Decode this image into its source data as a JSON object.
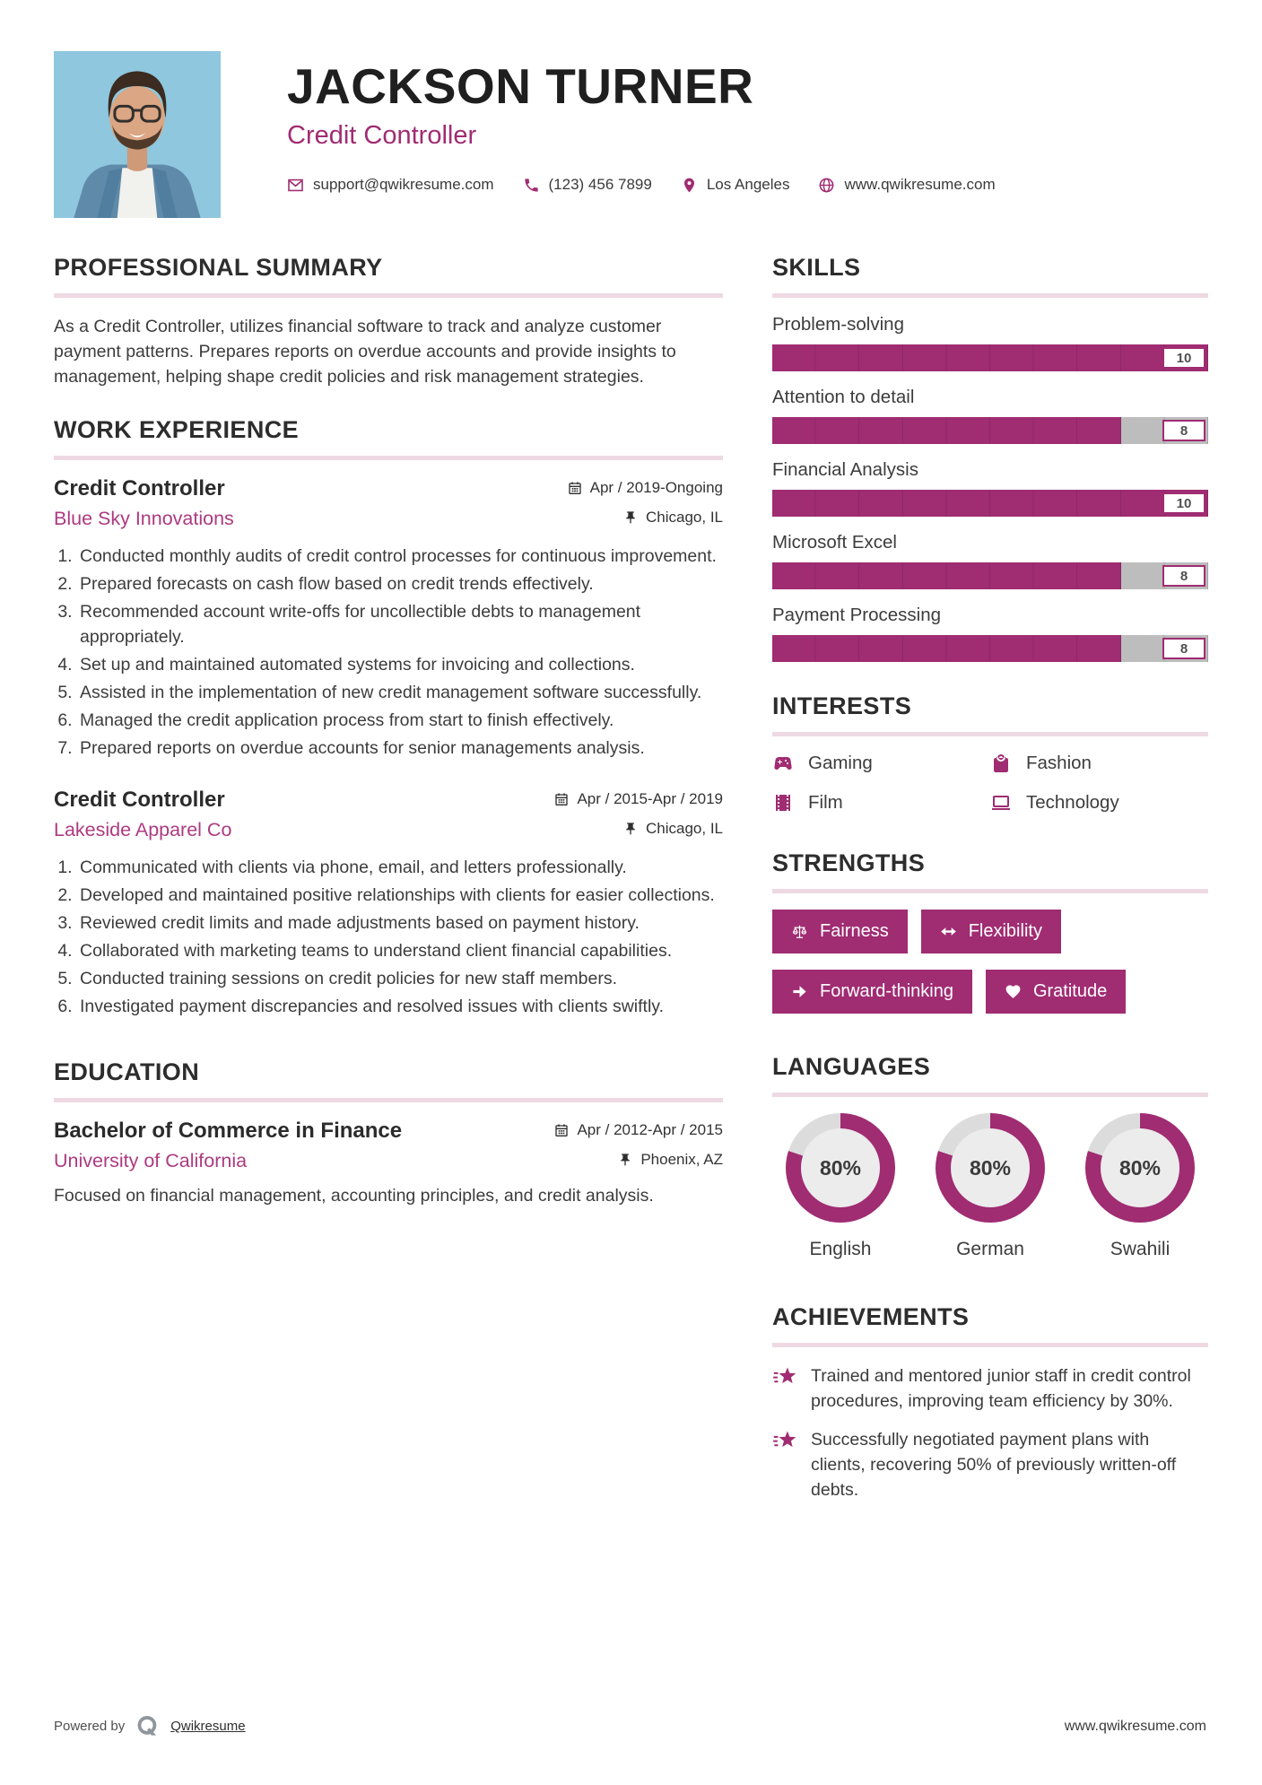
{
  "colors": {
    "accent": "#a02c72",
    "accent_light": "#ad3a80",
    "underline_pink": "#eed9e3",
    "bar_gray": "#bdbdbd",
    "donut_rest": "#dcdcdc",
    "donut_hole": "#ececec",
    "photo_background": "#8ec7de"
  },
  "header": {
    "name": "JACKSON TURNER",
    "title": "Credit Controller",
    "contact": [
      {
        "icon": "envelope-icon",
        "text": "support@qwikresume.com"
      },
      {
        "icon": "phone-icon",
        "text": "(123) 456 7899"
      },
      {
        "icon": "map-pin-icon",
        "text": "Los Angeles"
      },
      {
        "icon": "globe-icon",
        "text": "www.qwikresume.com"
      }
    ]
  },
  "meta_icons": {
    "date": "calendar-icon",
    "location": "pushpin-icon"
  },
  "professional_summary": {
    "heading": "PROFESSIONAL SUMMARY",
    "text": "As a Credit Controller, utilizes financial software to track and analyze customer payment patterns. Prepares reports on overdue accounts and provide insights to management, helping shape credit policies and risk management strategies."
  },
  "work_experience": {
    "heading": "WORK EXPERIENCE",
    "jobs": [
      {
        "title": "Credit Controller",
        "company": "Blue Sky Innovations",
        "dates": "Apr / 2019-Ongoing",
        "location": "Chicago, IL",
        "bullets": [
          "Conducted monthly audits of credit control processes for continuous improvement.",
          "Prepared forecasts on cash flow based on credit trends effectively.",
          "Recommended account write-offs for uncollectible debts to management appropriately.",
          "Set up and maintained automated systems for invoicing and collections.",
          "Assisted in the implementation of new credit management software successfully.",
          "Managed the credit application process from start to finish effectively.",
          "Prepared reports on overdue accounts for senior managements analysis."
        ]
      },
      {
        "title": "Credit Controller",
        "company": "Lakeside Apparel Co",
        "dates": "Apr / 2015-Apr / 2019",
        "location": "Chicago, IL",
        "bullets": [
          "Communicated with clients via phone, email, and letters professionally.",
          "Developed and maintained positive relationships with clients for easier collections.",
          "Reviewed credit limits and made adjustments based on payment history.",
          "Collaborated with marketing teams to understand client financial capabilities.",
          "Conducted training sessions on credit policies for new staff members.",
          "Investigated payment discrepancies and resolved issues with clients swiftly."
        ]
      }
    ]
  },
  "education": {
    "heading": "EDUCATION",
    "degree": "Bachelor of Commerce in Finance",
    "school": "University of California",
    "dates": "Apr / 2012-Apr / 2015",
    "location": "Phoenix, AZ",
    "description": "Focused on financial management, accounting principles, and credit analysis."
  },
  "skills": {
    "heading": "SKILLS",
    "max_score": 10,
    "items": [
      {
        "name": "Problem-solving",
        "score": 10,
        "pct": 100
      },
      {
        "name": "Attention to detail",
        "score": 8,
        "pct": 80
      },
      {
        "name": "Financial Analysis",
        "score": 10,
        "pct": 100
      },
      {
        "name": "Microsoft Excel",
        "score": 8,
        "pct": 80
      },
      {
        "name": "Payment Processing",
        "score": 8,
        "pct": 80
      }
    ]
  },
  "interests": {
    "heading": "INTERESTS",
    "items": [
      {
        "icon": "gamepad-icon",
        "label": "Gaming"
      },
      {
        "icon": "shopping-bag-icon",
        "label": "Fashion"
      },
      {
        "icon": "film-icon",
        "label": "Film"
      },
      {
        "icon": "laptop-icon",
        "label": "Technology"
      }
    ]
  },
  "strengths": {
    "heading": "STRENGTHS",
    "items": [
      {
        "icon": "scales-icon",
        "label": "Fairness"
      },
      {
        "icon": "left-right-arrow-icon",
        "label": "Flexibility"
      },
      {
        "icon": "right-arrow-icon",
        "label": "Forward-thinking"
      },
      {
        "icon": "heart-icon",
        "label": "Gratitude"
      }
    ]
  },
  "languages": {
    "heading": "LANGUAGES",
    "items": [
      {
        "name": "English",
        "value": 80,
        "pct_label": "80%"
      },
      {
        "name": "German",
        "value": 80,
        "pct_label": "80%"
      },
      {
        "name": "Swahili",
        "value": 80,
        "pct_label": "80%"
      }
    ]
  },
  "achievements": {
    "heading": "ACHIEVEMENTS",
    "icon": "shooting-star-icon",
    "items": [
      {
        "text": "Trained and mentored junior staff in credit control procedures, improving team efficiency by 30%."
      },
      {
        "text": "Successfully negotiated payment plans with clients, recovering 50% of previously written-off debts."
      }
    ]
  },
  "footer": {
    "powered_by": "Powered by",
    "logo_icon": "qwikresume-logo-icon",
    "brand": "Qwikresume",
    "website": "www.qwikresume.com"
  }
}
